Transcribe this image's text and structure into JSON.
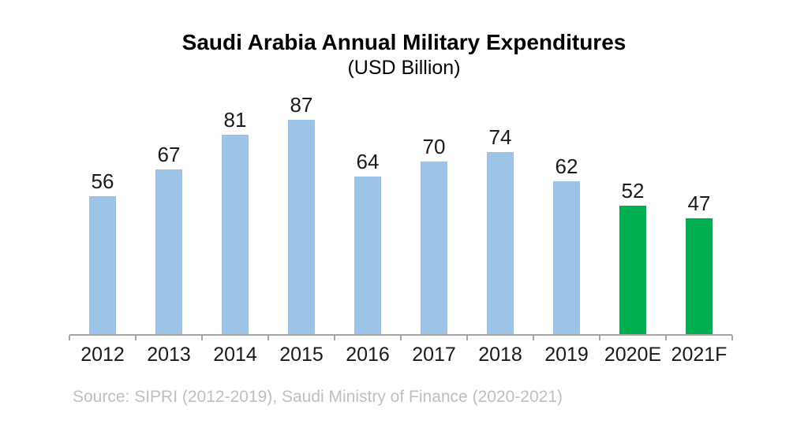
{
  "chart_data": {
    "type": "bar",
    "title": "Saudi Arabia Annual Military Expenditures",
    "subtitle": "(USD Billion)",
    "categories": [
      "2012",
      "2013",
      "2014",
      "2015",
      "2016",
      "2017",
      "2018",
      "2019",
      "2020E",
      "2021F"
    ],
    "values": [
      56,
      67,
      81,
      87,
      64,
      70,
      74,
      62,
      52,
      47
    ],
    "bar_color_keys": [
      "blue",
      "blue",
      "blue",
      "blue",
      "blue",
      "blue",
      "blue",
      "blue",
      "green",
      "green"
    ],
    "colors": {
      "blue": "#9DC3E6",
      "green": "#00B050",
      "axis": "#A6A6A6",
      "value_label": "#1A1A1A",
      "source": "#BFBFBF"
    },
    "ylim": [
      0,
      87
    ],
    "data_labels": true,
    "grid": false,
    "legend": false,
    "source_note": "Source: SIPRI (2012-2019), Saudi Ministry of Finance (2020-2021)"
  }
}
